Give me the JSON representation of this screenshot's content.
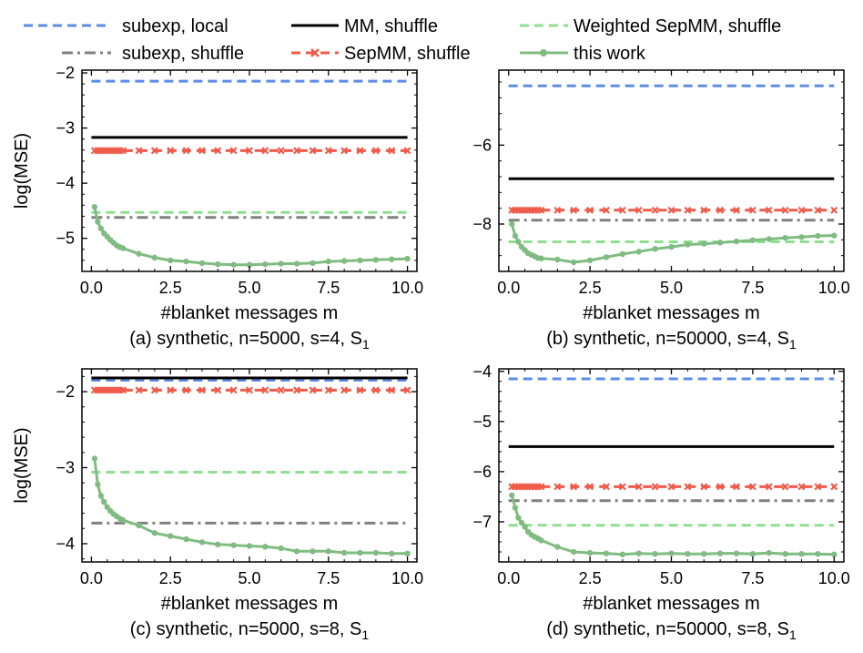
{
  "colors": {
    "subexp_local": "#5B8DE8",
    "mm_shuffle": "#000000",
    "weighted_sepmm": "#8EE08E",
    "subexp_shuffle": "#808080",
    "sepmm_shuffle": "#F05A4A",
    "this_work": "#80BC82"
  },
  "legend": [
    {
      "key": "subexp_local",
      "label": "subexp, local",
      "style": "dashed"
    },
    {
      "key": "mm_shuffle",
      "label": "MM, shuffle",
      "style": "solid"
    },
    {
      "key": "weighted_sepmm",
      "label": "Weighted SepMM, shuffle",
      "style": "dashed"
    },
    {
      "key": "subexp_shuffle",
      "label": "subexp, shuffle",
      "style": "dashdot"
    },
    {
      "key": "sepmm_shuffle",
      "label": "SepMM, shuffle",
      "style": "dashed-x"
    },
    {
      "key": "this_work",
      "label": "this work",
      "style": "solid-dot"
    }
  ],
  "chart_data": [
    {
      "type": "line",
      "caption": "(a) synthetic, n=5000, s=4, S",
      "caption_sub": "1",
      "xlabel": "#blanket messages m",
      "ylabel": "log(MSE)",
      "xlim": [
        -0.3,
        10.3
      ],
      "ylim": [
        -5.6,
        -1.95
      ],
      "xticks": [
        0.0,
        2.5,
        5.0,
        7.5,
        10.0
      ],
      "yticks": [
        -5,
        -4,
        -3,
        -2
      ],
      "series": [
        {
          "key": "subexp_local",
          "name": "subexp, local",
          "x": [
            0,
            10
          ],
          "y": [
            -2.15,
            -2.15
          ]
        },
        {
          "key": "mm_shuffle",
          "name": "MM, shuffle",
          "x": [
            0,
            10
          ],
          "y": [
            -3.17,
            -3.17
          ]
        },
        {
          "key": "sepmm_shuffle",
          "name": "SepMM, shuffle",
          "x": [
            0.1,
            0.2,
            0.3,
            0.4,
            0.5,
            0.6,
            0.7,
            0.8,
            0.9,
            1.0,
            1.5,
            2.0,
            2.5,
            3.0,
            3.5,
            4.0,
            4.5,
            5.0,
            5.5,
            6.0,
            6.5,
            7.0,
            7.5,
            8.0,
            8.5,
            9.0,
            9.5,
            10.0
          ],
          "y": [
            -3.41,
            -3.41,
            -3.41,
            -3.41,
            -3.41,
            -3.41,
            -3.41,
            -3.41,
            -3.41,
            -3.41,
            -3.41,
            -3.41,
            -3.41,
            -3.41,
            -3.41,
            -3.41,
            -3.41,
            -3.41,
            -3.41,
            -3.41,
            -3.41,
            -3.41,
            -3.41,
            -3.41,
            -3.41,
            -3.41,
            -3.41,
            -3.41
          ]
        },
        {
          "key": "weighted_sepmm",
          "name": "Weighted SepMM, shuffle",
          "x": [
            0,
            10
          ],
          "y": [
            -4.53,
            -4.53
          ]
        },
        {
          "key": "subexp_shuffle",
          "name": "subexp, shuffle",
          "x": [
            0,
            10
          ],
          "y": [
            -4.62,
            -4.62
          ]
        },
        {
          "key": "this_work",
          "name": "this work",
          "x": [
            0.1,
            0.2,
            0.3,
            0.4,
            0.5,
            0.6,
            0.7,
            0.8,
            0.9,
            1.0,
            1.5,
            2.0,
            2.5,
            3.0,
            3.5,
            4.0,
            4.5,
            5.0,
            5.5,
            6.0,
            6.5,
            7.0,
            7.5,
            8.0,
            8.5,
            9.0,
            9.5,
            10.0
          ],
          "y": [
            -4.43,
            -4.7,
            -4.82,
            -4.91,
            -4.97,
            -5.03,
            -5.08,
            -5.13,
            -5.16,
            -5.18,
            -5.28,
            -5.35,
            -5.4,
            -5.42,
            -5.45,
            -5.47,
            -5.48,
            -5.48,
            -5.47,
            -5.46,
            -5.46,
            -5.45,
            -5.42,
            -5.41,
            -5.4,
            -5.39,
            -5.38,
            -5.37
          ]
        }
      ]
    },
    {
      "type": "line",
      "caption": "(b) synthetic, n=50000, s=4, S",
      "caption_sub": "1",
      "xlabel": "#blanket messages m",
      "ylabel": "",
      "xlim": [
        -0.3,
        10.3
      ],
      "ylim": [
        -9.2,
        -4.1
      ],
      "xticks": [
        0.0,
        2.5,
        5.0,
        7.5,
        10.0
      ],
      "yticks": [
        -8,
        -6
      ],
      "series": [
        {
          "key": "subexp_local",
          "name": "subexp, local",
          "x": [
            0,
            10
          ],
          "y": [
            -4.5,
            -4.5
          ]
        },
        {
          "key": "mm_shuffle",
          "name": "MM, shuffle",
          "x": [
            0,
            10
          ],
          "y": [
            -6.85,
            -6.85
          ]
        },
        {
          "key": "sepmm_shuffle",
          "name": "SepMM, shuffle",
          "x": [
            0.1,
            0.2,
            0.3,
            0.4,
            0.5,
            0.6,
            0.7,
            0.8,
            0.9,
            1.0,
            1.5,
            2.0,
            2.5,
            3.0,
            3.5,
            4.0,
            4.5,
            5.0,
            5.5,
            6.0,
            6.5,
            7.0,
            7.5,
            8.0,
            8.5,
            9.0,
            9.5,
            10.0
          ],
          "y": [
            -7.65,
            -7.65,
            -7.65,
            -7.65,
            -7.65,
            -7.65,
            -7.65,
            -7.65,
            -7.65,
            -7.65,
            -7.65,
            -7.65,
            -7.65,
            -7.65,
            -7.65,
            -7.65,
            -7.65,
            -7.65,
            -7.65,
            -7.65,
            -7.65,
            -7.65,
            -7.65,
            -7.65,
            -7.65,
            -7.65,
            -7.65,
            -7.65
          ]
        },
        {
          "key": "subexp_shuffle",
          "name": "subexp, shuffle",
          "x": [
            0,
            10
          ],
          "y": [
            -7.9,
            -7.9
          ]
        },
        {
          "key": "weighted_sepmm",
          "name": "Weighted SepMM, shuffle",
          "x": [
            0,
            10
          ],
          "y": [
            -8.45,
            -8.45
          ]
        },
        {
          "key": "this_work",
          "name": "this work",
          "x": [
            0.1,
            0.2,
            0.3,
            0.4,
            0.5,
            0.6,
            0.7,
            0.8,
            0.9,
            1.0,
            1.5,
            2.0,
            2.5,
            3.0,
            3.5,
            4.0,
            4.5,
            5.0,
            5.5,
            6.0,
            6.5,
            7.0,
            7.5,
            8.0,
            8.5,
            9.0,
            9.5,
            10.0
          ],
          "y": [
            -8.0,
            -8.3,
            -8.45,
            -8.58,
            -8.66,
            -8.74,
            -8.78,
            -8.82,
            -8.86,
            -8.87,
            -8.9,
            -8.97,
            -8.92,
            -8.84,
            -8.76,
            -8.7,
            -8.63,
            -8.58,
            -8.52,
            -8.5,
            -8.47,
            -8.44,
            -8.41,
            -8.38,
            -8.35,
            -8.33,
            -8.3,
            -8.29
          ]
        }
      ]
    },
    {
      "type": "line",
      "caption": "(c) synthetic, n=5000, s=8, S",
      "caption_sub": "1",
      "xlabel": "#blanket messages m",
      "ylabel": "log(MSE)",
      "xlim": [
        -0.3,
        10.3
      ],
      "ylim": [
        -4.24,
        -1.7
      ],
      "xticks": [
        0.0,
        2.5,
        5.0,
        7.5,
        10.0
      ],
      "yticks": [
        -4,
        -3,
        -2
      ],
      "series": [
        {
          "key": "subexp_local",
          "name": "subexp, local",
          "x": [
            0,
            10
          ],
          "y": [
            -1.85,
            -1.85
          ]
        },
        {
          "key": "mm_shuffle",
          "name": "MM, shuffle",
          "x": [
            0,
            10
          ],
          "y": [
            -1.82,
            -1.82
          ]
        },
        {
          "key": "sepmm_shuffle",
          "name": "SepMM, shuffle",
          "x": [
            0.1,
            0.2,
            0.3,
            0.4,
            0.5,
            0.6,
            0.7,
            0.8,
            0.9,
            1.0,
            1.5,
            2.0,
            2.5,
            3.0,
            3.5,
            4.0,
            4.5,
            5.0,
            5.5,
            6.0,
            6.5,
            7.0,
            7.5,
            8.0,
            8.5,
            9.0,
            9.5,
            10.0
          ],
          "y": [
            -1.98,
            -1.98,
            -1.98,
            -1.98,
            -1.98,
            -1.98,
            -1.98,
            -1.98,
            -1.98,
            -1.98,
            -1.98,
            -1.98,
            -1.98,
            -1.98,
            -1.98,
            -1.98,
            -1.98,
            -1.98,
            -1.98,
            -1.98,
            -1.98,
            -1.98,
            -1.98,
            -1.98,
            -1.98,
            -1.98,
            -1.98,
            -1.98
          ]
        },
        {
          "key": "weighted_sepmm",
          "name": "Weighted SepMM, shuffle",
          "x": [
            0,
            10
          ],
          "y": [
            -3.06,
            -3.06
          ]
        },
        {
          "key": "subexp_shuffle",
          "name": "subexp, shuffle",
          "x": [
            0,
            10
          ],
          "y": [
            -3.73,
            -3.73
          ]
        },
        {
          "key": "this_work",
          "name": "this work",
          "x": [
            0.1,
            0.2,
            0.3,
            0.4,
            0.5,
            0.6,
            0.7,
            0.8,
            0.9,
            1.0,
            1.5,
            2.0,
            2.5,
            3.0,
            3.5,
            4.0,
            4.5,
            5.0,
            5.5,
            6.0,
            6.5,
            7.0,
            7.5,
            8.0,
            8.5,
            9.0,
            9.5,
            10.0
          ],
          "y": [
            -2.88,
            -3.22,
            -3.37,
            -3.45,
            -3.52,
            -3.57,
            -3.61,
            -3.64,
            -3.67,
            -3.69,
            -3.76,
            -3.86,
            -3.9,
            -3.94,
            -3.98,
            -4.01,
            -4.02,
            -4.03,
            -4.04,
            -4.06,
            -4.1,
            -4.1,
            -4.1,
            -4.12,
            -4.12,
            -4.12,
            -4.13,
            -4.13
          ]
        }
      ]
    },
    {
      "type": "line",
      "caption": "(d) synthetic, n=50000, s=8, S",
      "caption_sub": "1",
      "xlabel": "#blanket messages m",
      "ylabel": "",
      "xlim": [
        -0.3,
        10.3
      ],
      "ylim": [
        -7.8,
        -3.95
      ],
      "xticks": [
        0.0,
        2.5,
        5.0,
        7.5,
        10.0
      ],
      "yticks": [
        -7,
        -6,
        -5,
        -4
      ],
      "series": [
        {
          "key": "subexp_local",
          "name": "subexp, local",
          "x": [
            0,
            10
          ],
          "y": [
            -4.15,
            -4.15
          ]
        },
        {
          "key": "mm_shuffle",
          "name": "MM, shuffle",
          "x": [
            0,
            10
          ],
          "y": [
            -5.5,
            -5.5
          ]
        },
        {
          "key": "sepmm_shuffle",
          "name": "SepMM, shuffle",
          "x": [
            0.1,
            0.2,
            0.3,
            0.4,
            0.5,
            0.6,
            0.7,
            0.8,
            0.9,
            1.0,
            1.5,
            2.0,
            2.5,
            3.0,
            3.5,
            4.0,
            4.5,
            5.0,
            5.5,
            6.0,
            6.5,
            7.0,
            7.5,
            8.0,
            8.5,
            9.0,
            9.5,
            10.0
          ],
          "y": [
            -6.3,
            -6.3,
            -6.3,
            -6.3,
            -6.3,
            -6.3,
            -6.3,
            -6.3,
            -6.3,
            -6.3,
            -6.3,
            -6.3,
            -6.3,
            -6.3,
            -6.3,
            -6.3,
            -6.3,
            -6.3,
            -6.3,
            -6.3,
            -6.3,
            -6.3,
            -6.3,
            -6.3,
            -6.3,
            -6.3,
            -6.3,
            -6.3
          ]
        },
        {
          "key": "subexp_shuffle",
          "name": "subexp, shuffle",
          "x": [
            0,
            10
          ],
          "y": [
            -6.58,
            -6.58
          ]
        },
        {
          "key": "weighted_sepmm",
          "name": "Weighted SepMM, shuffle",
          "x": [
            0,
            10
          ],
          "y": [
            -7.07,
            -7.07
          ]
        },
        {
          "key": "this_work",
          "name": "this work",
          "x": [
            0.1,
            0.2,
            0.3,
            0.4,
            0.5,
            0.6,
            0.7,
            0.8,
            0.9,
            1.0,
            1.5,
            2.0,
            2.5,
            3.0,
            3.5,
            4.0,
            4.5,
            5.0,
            5.5,
            6.0,
            6.5,
            7.0,
            7.5,
            8.0,
            8.5,
            9.0,
            9.5,
            10.0
          ],
          "y": [
            -6.47,
            -6.72,
            -6.92,
            -7.02,
            -7.1,
            -7.2,
            -7.26,
            -7.3,
            -7.33,
            -7.37,
            -7.5,
            -7.6,
            -7.62,
            -7.63,
            -7.65,
            -7.63,
            -7.64,
            -7.63,
            -7.64,
            -7.64,
            -7.63,
            -7.63,
            -7.64,
            -7.62,
            -7.64,
            -7.64,
            -7.64,
            -7.65
          ]
        }
      ]
    }
  ]
}
